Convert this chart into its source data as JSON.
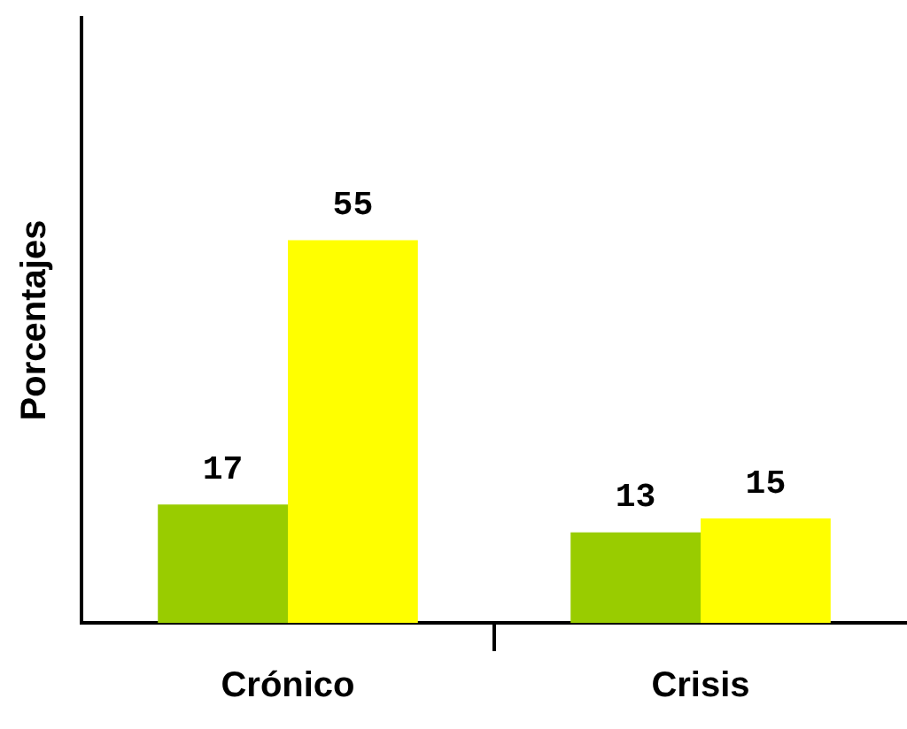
{
  "chart_data": {
    "type": "bar",
    "ylabel": "Porcentajes",
    "categories": [
      "Crónico",
      "Crisis"
    ],
    "series": [
      {
        "color": "#99cc00",
        "values": [
          17,
          13
        ]
      },
      {
        "color": "#ffff00",
        "values": [
          55,
          15
        ]
      }
    ],
    "ylim": [
      0,
      87
    ],
    "data_labels": true,
    "tick_labels": "x"
  }
}
